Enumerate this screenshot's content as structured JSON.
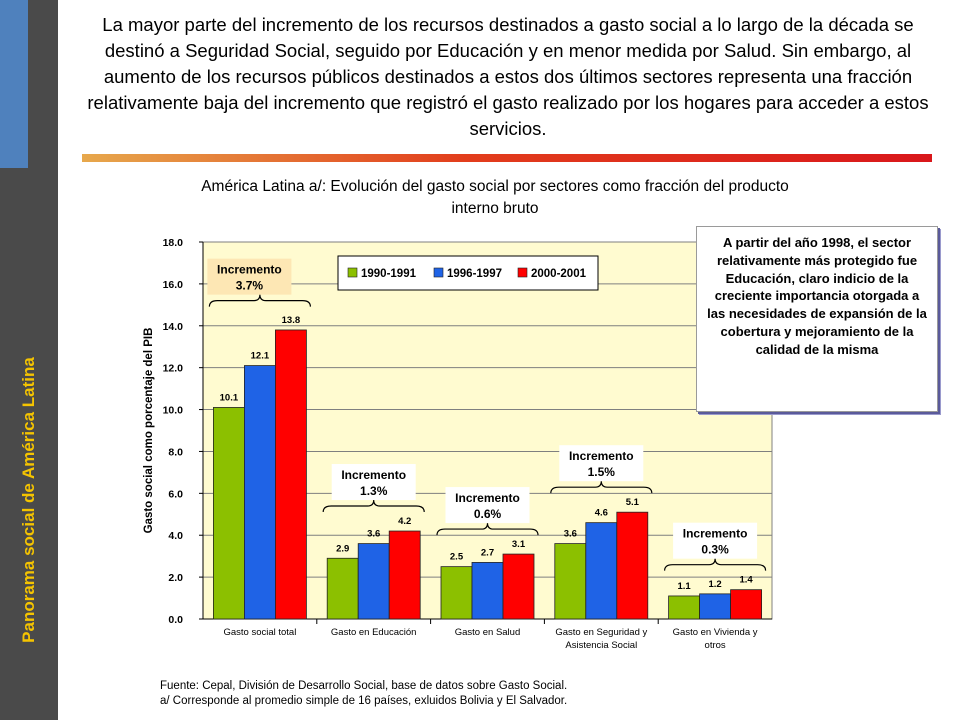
{
  "sidebar": {
    "title": "Panorama social de América Latina",
    "accent_color": "#4f81bd",
    "title_color": "#f5c400"
  },
  "headline": "La mayor parte del incremento de los recursos destinados a gasto social a lo largo de la década se destinó a Seguridad Social, seguido por Educación y en menor medida por Salud. Sin embargo, al aumento de los recursos públicos destinados a estos dos últimos sectores representa una fracción relativamente baja del incremento que registró el gasto realizado por los hogares para acceder a estos servicios.",
  "note": "A partir del año 1998, el sector relativamente más protegido fue Educación, claro indicio de la creciente importancia otorgada a las necesidades de expansión de la cobertura y mejoramiento de la calidad de la misma",
  "source": {
    "line1": "Fuente: Cepal, División de Desarrollo Social, base de datos sobre Gasto Social.",
    "line2": "a/ Corresponde al promedio simple de 16 países, exluidos Bolivia y El Salvador."
  },
  "chart_data": {
    "type": "bar",
    "title": "América Latina a/: Evolución del gasto social por sectores como fracción del producto interno bruto",
    "ylabel": "Gasto social como porcentaje del PIB",
    "xlabel": "",
    "ylim": [
      0,
      18
    ],
    "yticks": [
      "0.0",
      "2.0",
      "4.0",
      "6.0",
      "8.0",
      "10.0",
      "12.0",
      "14.0",
      "16.0",
      "18.0"
    ],
    "grid": true,
    "legend_position": "top",
    "categories": [
      "Gasto social total",
      "Gasto en Educación",
      "Gasto en Salud",
      "Gasto en Seguridad y Asistencia Social",
      "Gasto en Vivienda y otros"
    ],
    "category_lines": [
      [
        "Gasto social total"
      ],
      [
        "Gasto en Educación"
      ],
      [
        "Gasto en Salud"
      ],
      [
        "Gasto en Seguridad y",
        "Asistencia Social"
      ],
      [
        "Gasto en Vivienda y",
        "otros"
      ]
    ],
    "series": [
      {
        "name": "1990-1991",
        "color": "#8cc000",
        "values": [
          10.1,
          2.9,
          2.5,
          3.6,
          1.1
        ],
        "labels": [
          "10.1",
          "2.9",
          "2.5",
          "3.6",
          "1.1"
        ]
      },
      {
        "name": "1996-1997",
        "color": "#1f63e6",
        "values": [
          12.1,
          3.6,
          2.7,
          4.6,
          1.2
        ],
        "labels": [
          "12.1",
          "3.6",
          "2.7",
          "4.6",
          "1.2"
        ]
      },
      {
        "name": "2000-2001",
        "color": "#ff0000",
        "values": [
          13.8,
          4.2,
          3.1,
          5.1,
          1.4
        ],
        "labels": [
          "13.8",
          "4.2",
          "3.1",
          "5.1",
          "1.4"
        ]
      }
    ],
    "annotations": [
      {
        "title": "Incremento",
        "value": "3.7%"
      },
      {
        "title": "Incremento",
        "value": "1.3%"
      },
      {
        "title": "Incremento",
        "value": "0.6%"
      },
      {
        "title": "Incremento",
        "value": "1.5%"
      },
      {
        "title": "Incremento",
        "value": "0.3%"
      }
    ],
    "plot_background": "#fffbd0"
  }
}
